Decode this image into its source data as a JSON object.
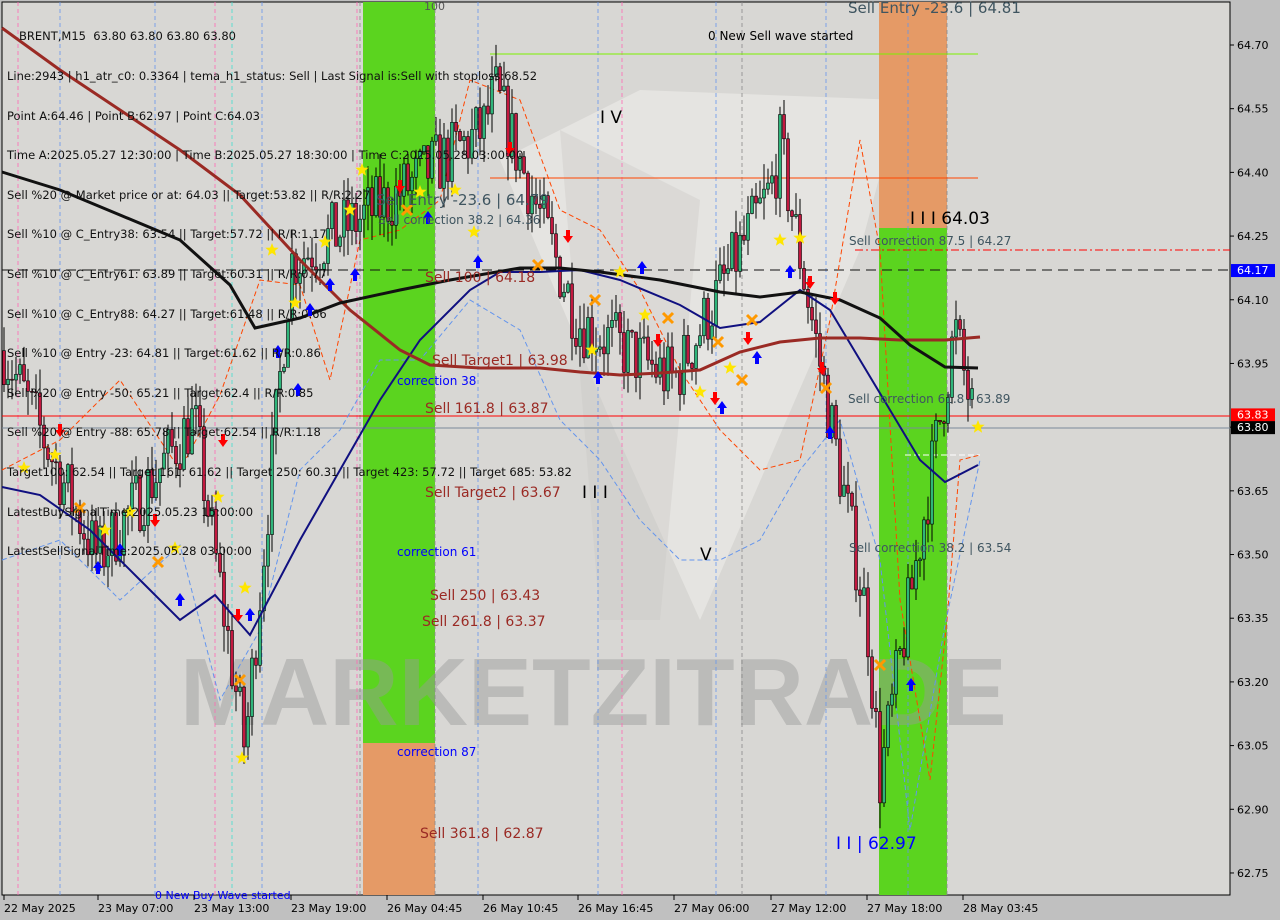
{
  "header": {
    "symbol_line": "BRENT,M15  63.80 63.80 63.80 63.80",
    "info_lines": [
      "Line:2943 | h1_atr_c0: 0.3364 | tema_h1_status: Sell | Last Signal is:Sell with stoploss:68.52",
      "Point A:64.46 | Point B:62.97 | Point C:64.03",
      "Time A:2025.05.27 12:30:00 | Time B:2025.05.27 18:30:00 | Time C:2025.05.28 03:00:00",
      "Sell %20 @ Market price or at: 64.03 || Target:53.82 || R/R:2.27",
      "Sell %10 @ C_Entry38: 63.54 || Target:57.72 || R/R:1.17",
      "Sell %10 @ C_Entry61: 63.89 || Target:60.31 || R/R:0.77",
      "Sell %10 @ C_Entry88: 64.27 || Target:61.48 || R/R:0.66",
      "Sell %10 @ Entry -23: 64.81 || Target:61.62 || R/R:0.86",
      "Sell %20 @ Entry -50: 65.21 || Target:62.4 || R/R:0.85",
      "Sell %20 @ Entry -88: 65.78 || Target:62.54 || R/R:1.18",
      "Target100: 62.54 || Target 161: 61.62 || Target 250: 60.31 || Target 423: 57.72 || Target 685: 53.82",
      "LatestBuySignalTime:2025.05.23 15:00:00",
      "LatestSellSignalTime:2025.05.28 03:00:00"
    ]
  },
  "annotations": {
    "sell_entry_left": "Sell Entry -23.6 | 64.79",
    "sell_entry_right": "Sell Entry -23.6 | 64.81",
    "new_sell_wave": "0 New Sell wave started",
    "new_buy_wave": "0 New Buy Wave started",
    "wave_iv": "I V",
    "wave_v": "V",
    "wave_iii_black": "I I I",
    "point_c_label": "I I I 64.03",
    "point_b_label": "I I | 62.97",
    "sell_correction_875": "Sell correction 87.5 | 64.27",
    "sell_correction_618": "Sell correction 61.8 | 63.89",
    "sell_correction_382": "Sell correction 38.2 | 63.54",
    "sell_correction_left": "Sell correction 38.2 | 64.36",
    "sell_100": "Sell 100 | 64.18",
    "sell_target1": "Sell Target1 | 63.98",
    "sell_1618": "Sell 161.8 | 63.87",
    "sell_target2": "Sell Target2 | 63.67",
    "sell_250": "Sell  250 | 63.43",
    "sell_2618": "Sell  261.8 | 63.37",
    "sell_3618": "Sell  361.8 | 62.87",
    "correction_38": "correction 38",
    "correction_61": "correction 61",
    "correction_87": "correction 87",
    "level_100": "100",
    "watermark": "MARKETZITRADE"
  },
  "colors": {
    "background": "#d8d7d4",
    "axis_background": "#c0c0c0",
    "bull_candle": "#2fb57a",
    "bear_candle": "#c2183f",
    "green_zone": "#5bd41f",
    "orange_zone": "#e59a66",
    "ma_black": "#111111",
    "ma_brown": "#9a2a24",
    "ma_navy": "#101080",
    "bid_line": "#ff0000",
    "price_line": "#7a8a9a",
    "blue_tag": "#0000ff"
  },
  "chart_data": {
    "type": "candlestick",
    "title": "BRENT,M15",
    "ylim": [
      62.72,
      64.8
    ],
    "y_ticks": [
      "64.70",
      "64.55",
      "64.40",
      "64.25",
      "64.10",
      "63.95",
      "63.80",
      "63.65",
      "63.50",
      "63.35",
      "63.20",
      "63.05",
      "62.90",
      "62.75"
    ],
    "x_ticks": [
      "22 May 2025",
      "23 May 07:00",
      "23 May 13:00",
      "23 May 19:00",
      "26 May 04:45",
      "26 May 10:45",
      "26 May 16:45",
      "27 May 06:00",
      "27 May 12:00",
      "27 May 18:00",
      "28 May 03:45"
    ],
    "price_tags": [
      {
        "value": "64.17",
        "color": "#0000ff",
        "text_color": "#ffffff"
      },
      {
        "value": "63.83",
        "color": "#ff0000",
        "text_color": "#ffffff"
      },
      {
        "value": "63.80",
        "color": "#000000",
        "text_color": "#ffffff"
      }
    ],
    "last_bar": {
      "open": 63.8,
      "high": 63.8,
      "low": 63.8,
      "close": 63.8
    },
    "price_path": [
      {
        "time": "22 May 2025",
        "price": 63.98
      },
      {
        "time": "23 May 07:00",
        "price": 63.49
      },
      {
        "time": "23 May 13:00",
        "price": 63.82
      },
      {
        "time": "23 May 15:00",
        "price": 63.04
      },
      {
        "time": "23 May 19:00",
        "price": 64.19
      },
      {
        "time": "26 May 04:45",
        "price": 64.33
      },
      {
        "time": "26 May 10:45",
        "price": 64.5
      },
      {
        "time": "26 May 11:30",
        "price": 64.59
      },
      {
        "time": "26 May 16:45",
        "price": 64.05
      },
      {
        "time": "27 May 06:00",
        "price": 63.91
      },
      {
        "time": "27 May 12:00",
        "price": 64.36
      },
      {
        "time": "27 May 12:30",
        "price": 64.46
      },
      {
        "time": "27 May 18:00",
        "price": 63.35
      },
      {
        "time": "27 May 18:30",
        "price": 62.97
      },
      {
        "time": "28 May 03:00",
        "price": 64.03
      },
      {
        "time": "28 May 03:45",
        "price": 63.8
      }
    ]
  }
}
